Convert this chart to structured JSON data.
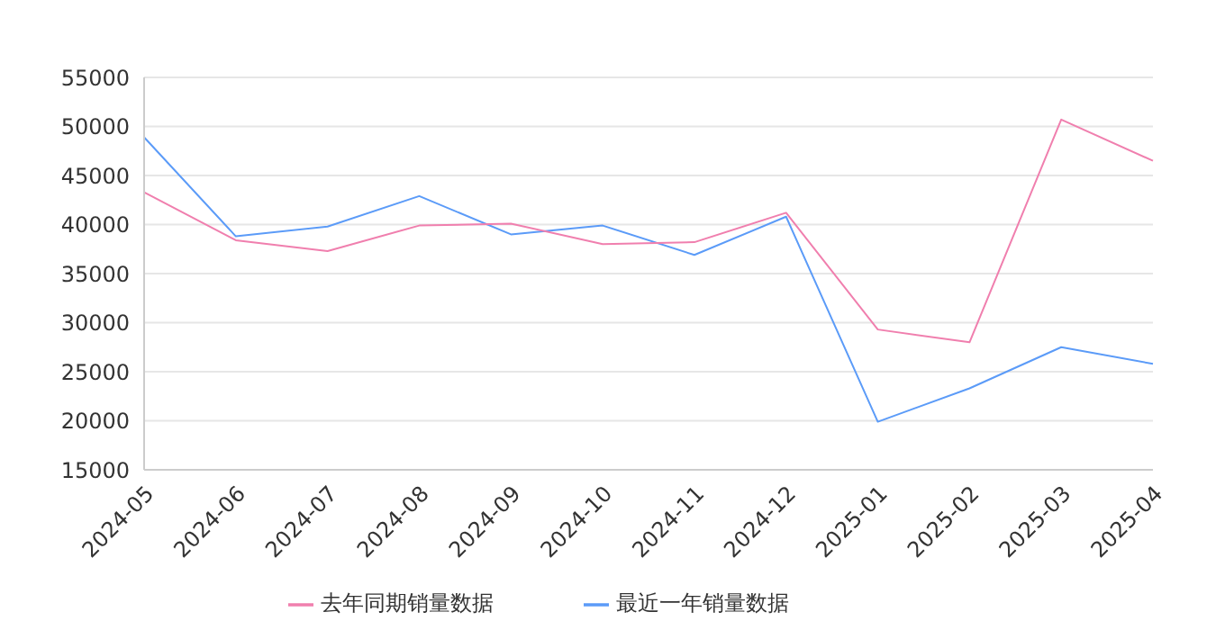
{
  "chart_data": {
    "type": "line",
    "categories": [
      "2024-05",
      "2024-06",
      "2024-07",
      "2024-08",
      "2024-09",
      "2024-10",
      "2024-11",
      "2024-12",
      "2025-01",
      "2025-02",
      "2025-03",
      "2025-04"
    ],
    "series": [
      {
        "name": "最近一年销量数据",
        "color": "#5b9bf8",
        "values": [
          48900,
          38800,
          39800,
          42900,
          39000,
          39900,
          36900,
          40800,
          19900,
          23300,
          27500,
          25800
        ]
      },
      {
        "name": "去年同期销量数据",
        "color": "#f07fae",
        "values": [
          43300,
          38400,
          37300,
          39900,
          40100,
          38000,
          38200,
          41200,
          29300,
          28000,
          50700,
          46500
        ]
      }
    ],
    "ylim": [
      15000,
      55000
    ],
    "yticks": [
      15000,
      20000,
      25000,
      30000,
      35000,
      40000,
      45000,
      50000,
      55000
    ],
    "grid": "y",
    "legend": "bottom",
    "marker": "none",
    "line_style": "solid"
  }
}
